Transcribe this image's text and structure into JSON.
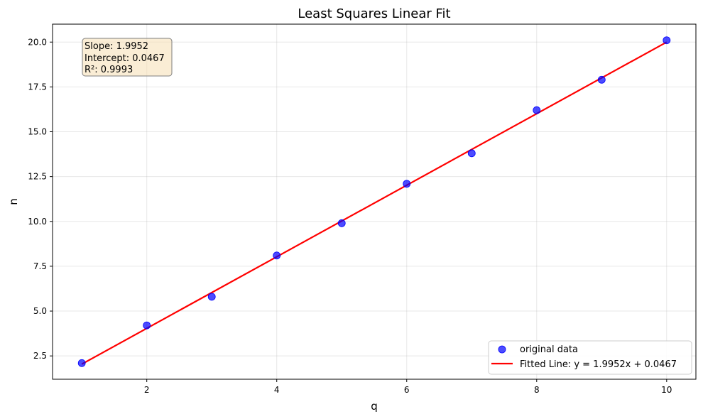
{
  "chart_data": {
    "type": "scatter",
    "title": "Least Squares Linear Fit",
    "xlabel": "q",
    "ylabel": "n",
    "xlim": [
      0.55,
      10.45
    ],
    "ylim": [
      1.2,
      21.0
    ],
    "xticks": [
      2,
      4,
      6,
      8,
      10
    ],
    "yticks": [
      2.5,
      5.0,
      7.5,
      10.0,
      12.5,
      15.0,
      17.5,
      20.0
    ],
    "grid": true,
    "legend_position": "lower-right",
    "series": [
      {
        "name": "original data",
        "kind": "scatter",
        "color": "#0000ff",
        "x": [
          1,
          2,
          3,
          4,
          5,
          6,
          7,
          8,
          9,
          10
        ],
        "y": [
          2.1,
          4.2,
          5.8,
          8.1,
          9.9,
          12.1,
          13.8,
          16.2,
          17.9,
          20.1
        ]
      },
      {
        "name": "Fitted Line: y = 1.9952x + 0.0467",
        "kind": "line",
        "color": "#ff0000",
        "slope": 1.9952,
        "intercept": 0.0467,
        "x_range": [
          1,
          10
        ]
      }
    ],
    "annotation": {
      "lines": [
        "Slope: 1.9952",
        "Intercept: 0.0467",
        "R²: 0.9993"
      ],
      "position": "top-left",
      "background": "#f5deb3"
    }
  }
}
